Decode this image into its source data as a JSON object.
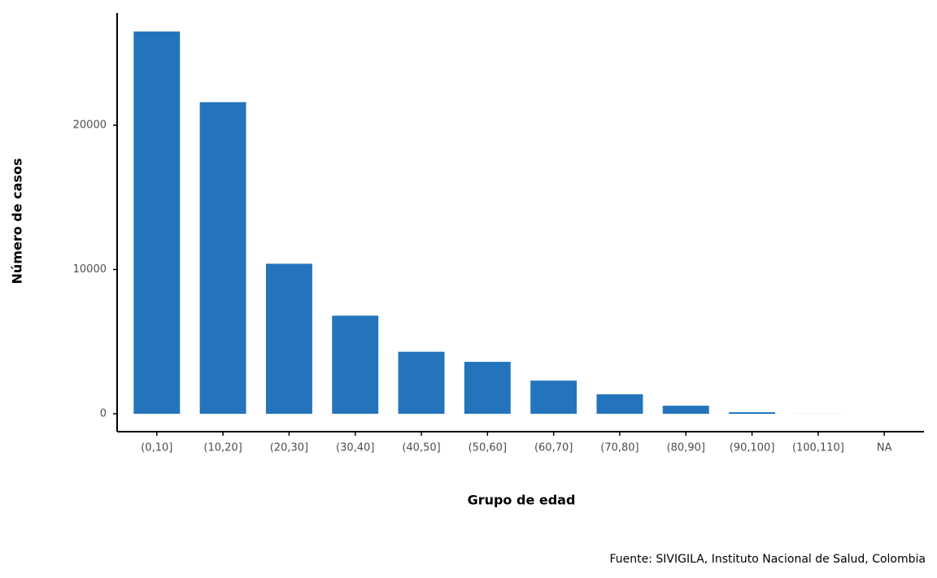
{
  "chart_data": {
    "type": "bar",
    "categories": [
      "(0,10]",
      "(10,20]",
      "(20,30]",
      "(30,40]",
      "(40,50]",
      "(50,60]",
      "(60,70]",
      "(70,80]",
      "(80,90]",
      "(90,100]",
      "(100,110]",
      "NA"
    ],
    "values": [
      26500,
      21600,
      10400,
      6800,
      4300,
      3600,
      2300,
      1350,
      560,
      110,
      5,
      0
    ],
    "color": "#2374bb",
    "ylim": [
      -1240,
      27780
    ],
    "yticks": [
      0,
      10000,
      20000
    ],
    "x_label": "Grupo de edad",
    "y_label": "Número de casos",
    "caption": "Fuente: SIVIGILA, Instituto Nacional de Salud, Colombia",
    "grid": false
  }
}
